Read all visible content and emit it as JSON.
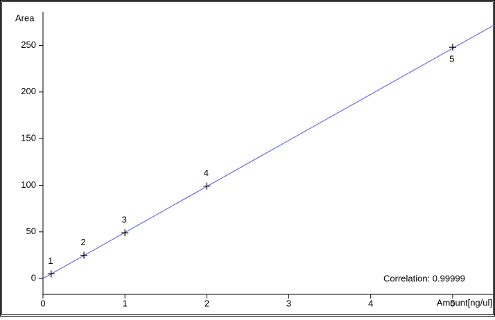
{
  "chart_data": {
    "type": "scatter",
    "x_label": "Amount[ng/ul]",
    "y_label": "Area",
    "x": [
      0.1,
      0.5,
      1,
      2,
      5
    ],
    "values": [
      5,
      25,
      49,
      99,
      248
    ],
    "point_labels": [
      "1",
      "2",
      "3",
      "4",
      "5"
    ],
    "marker_color": "#000000",
    "fit_line": {
      "x": [
        0,
        5.5
      ],
      "values": [
        0,
        271.5
      ],
      "color": "#5050e0"
    },
    "annotation": "Correlation: 0.99999",
    "xlim": [
      0,
      5.5
    ],
    "ylim": [
      -17,
      286
    ],
    "xticks": [
      0,
      1,
      2,
      3,
      4,
      5
    ],
    "yticks": [
      0,
      50,
      100,
      150,
      200,
      250
    ],
    "grid": false
  }
}
